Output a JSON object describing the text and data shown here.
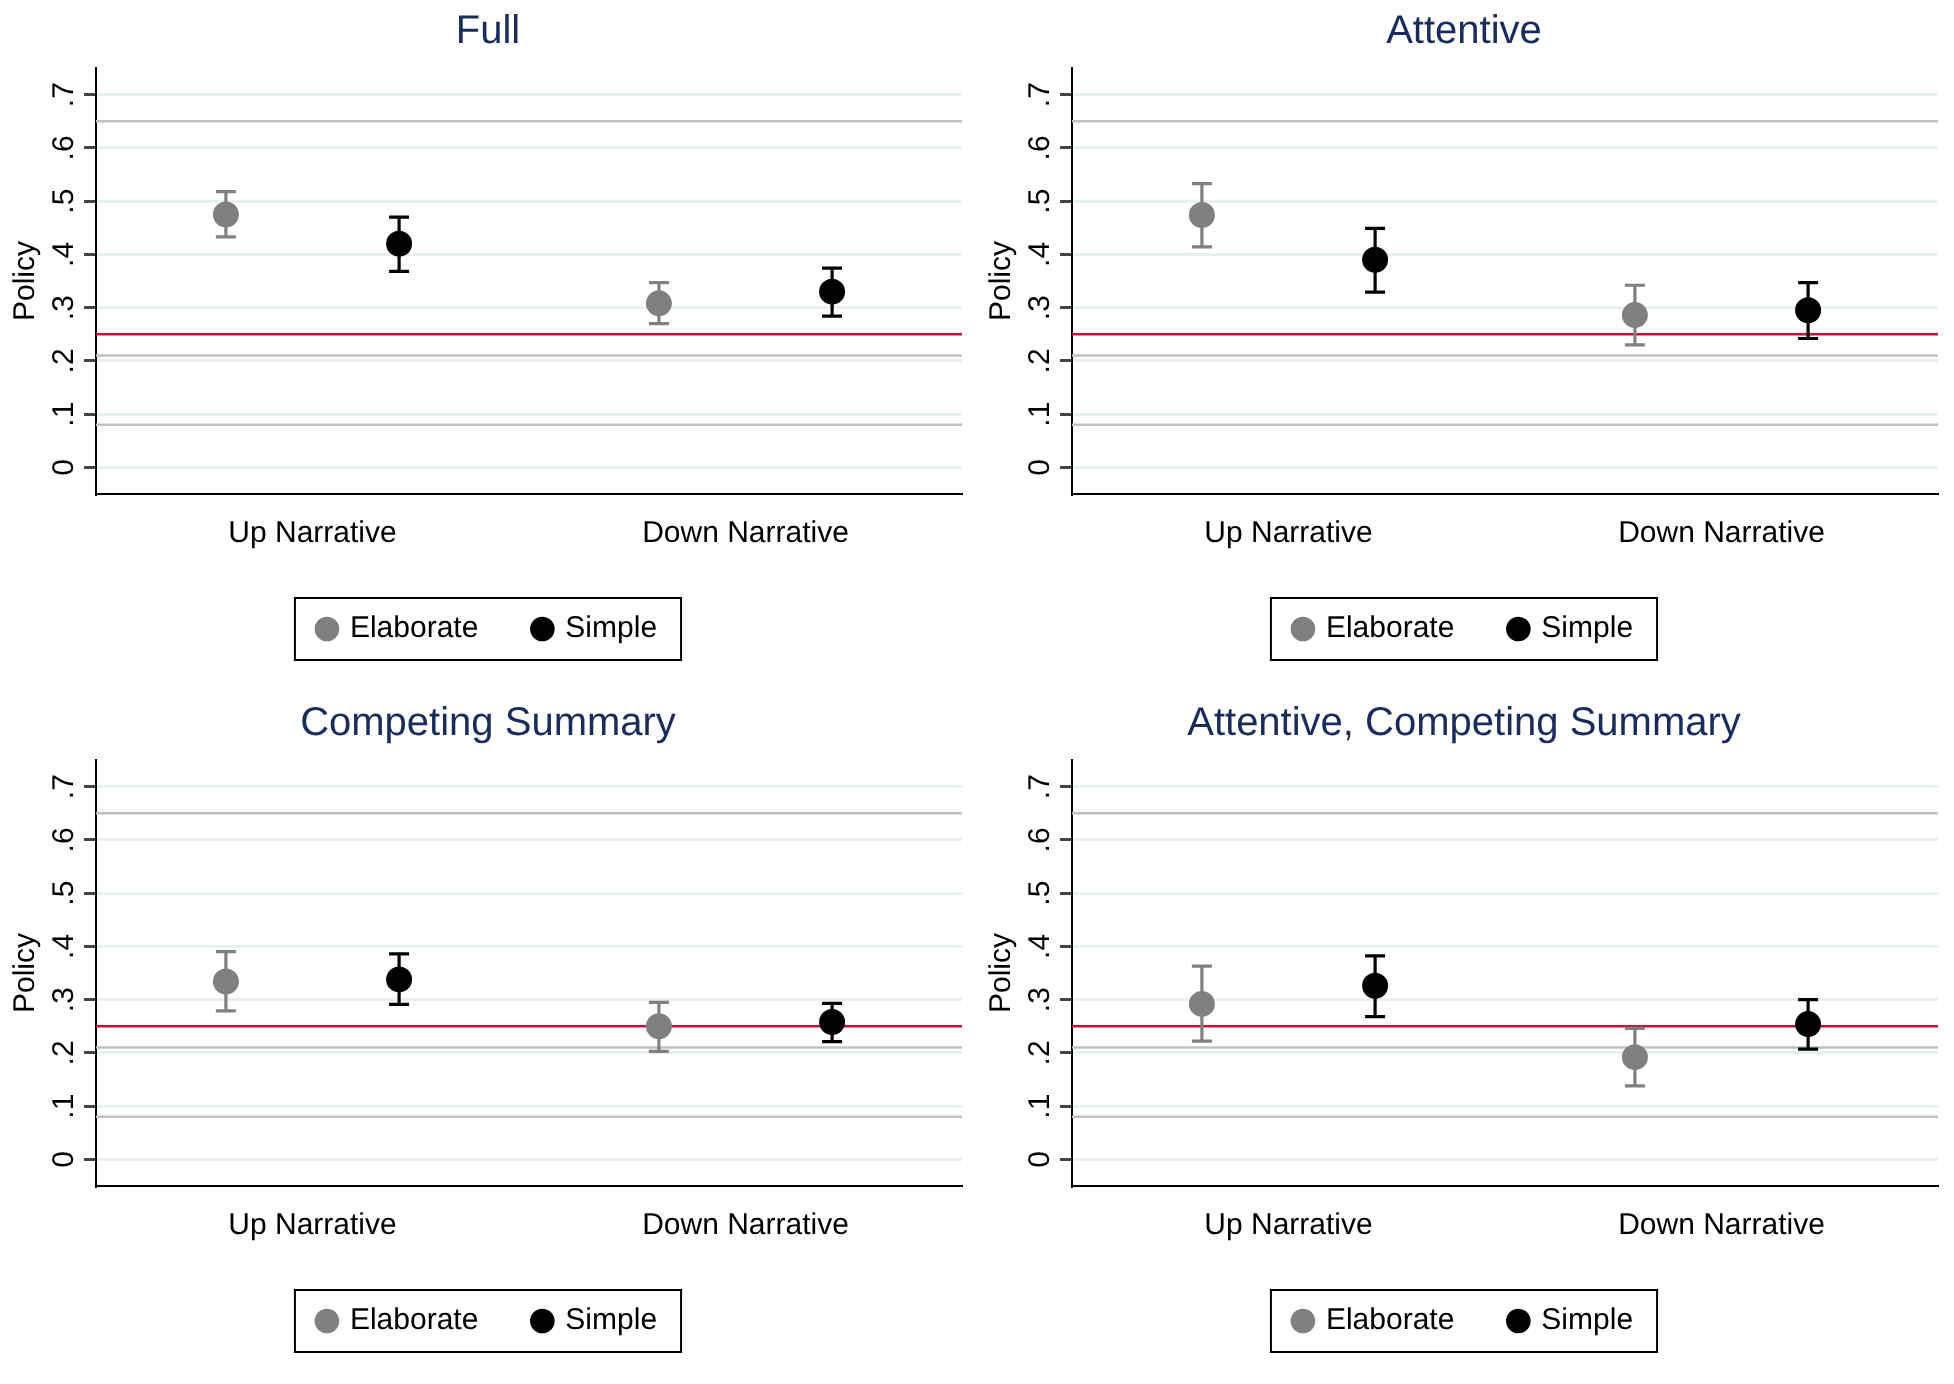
{
  "chart_data": [
    {
      "type": "scatter",
      "title": "Full",
      "ylabel": "Policy",
      "categories": [
        "Up Narrative",
        "Down Narrative"
      ],
      "series": [
        {
          "name": "Elaborate",
          "color": "#808080",
          "values": [
            0.475,
            0.308
          ],
          "errors": [
            [
              0.433,
              0.518
            ],
            [
              0.27,
              0.347
            ]
          ]
        },
        {
          "name": "Simple",
          "color": "#000000",
          "values": [
            0.42,
            0.33
          ],
          "errors": [
            [
              0.368,
              0.47
            ],
            [
              0.284,
              0.374
            ]
          ]
        }
      ],
      "ylim": [
        -0.05,
        0.75
      ],
      "yticks": [
        {
          "value": 0,
          "label": "0"
        },
        {
          "value": 0.1,
          "label": ".1"
        },
        {
          "value": 0.2,
          "label": ".2"
        },
        {
          "value": 0.3,
          "label": ".3"
        },
        {
          "value": 0.4,
          "label": ".4"
        },
        {
          "value": 0.5,
          "label": ".5"
        },
        {
          "value": 0.6,
          "label": ".6"
        },
        {
          "value": 0.7,
          "label": ".7"
        }
      ],
      "ref_lines": [
        {
          "axis": "y",
          "value": 0.65,
          "color": "#c0c0c0"
        },
        {
          "axis": "y",
          "value": 0.21,
          "color": "#c0c0c0"
        },
        {
          "axis": "y",
          "value": 0.08,
          "color": "#c0c0c0"
        },
        {
          "axis": "y",
          "value": 0.25,
          "color": "#c8103c"
        }
      ],
      "grid": "y",
      "legend": "bottom",
      "marker": "circle"
    },
    {
      "type": "scatter",
      "title": "Attentive",
      "ylabel": "Policy",
      "categories": [
        "Up Narrative",
        "Down Narrative"
      ],
      "series": [
        {
          "name": "Elaborate",
          "color": "#808080",
          "values": [
            0.474,
            0.286
          ],
          "errors": [
            [
              0.414,
              0.533
            ],
            [
              0.23,
              0.342
            ]
          ]
        },
        {
          "name": "Simple",
          "color": "#000000",
          "values": [
            0.39,
            0.295
          ],
          "errors": [
            [
              0.329,
              0.449
            ],
            [
              0.242,
              0.347
            ]
          ]
        }
      ],
      "ylim": [
        -0.05,
        0.75
      ],
      "yticks": [
        {
          "value": 0,
          "label": "0"
        },
        {
          "value": 0.1,
          "label": ".1"
        },
        {
          "value": 0.2,
          "label": ".2"
        },
        {
          "value": 0.3,
          "label": ".3"
        },
        {
          "value": 0.4,
          "label": ".4"
        },
        {
          "value": 0.5,
          "label": ".5"
        },
        {
          "value": 0.6,
          "label": ".6"
        },
        {
          "value": 0.7,
          "label": ".7"
        }
      ],
      "ref_lines": [
        {
          "axis": "y",
          "value": 0.65,
          "color": "#c0c0c0"
        },
        {
          "axis": "y",
          "value": 0.21,
          "color": "#c0c0c0"
        },
        {
          "axis": "y",
          "value": 0.08,
          "color": "#c0c0c0"
        },
        {
          "axis": "y",
          "value": 0.25,
          "color": "#c8103c"
        }
      ],
      "grid": "y",
      "legend": "bottom",
      "marker": "circle"
    },
    {
      "type": "scatter",
      "title": "Competing Summary",
      "ylabel": "Policy",
      "categories": [
        "Up Narrative",
        "Down Narrative"
      ],
      "series": [
        {
          "name": "Elaborate",
          "color": "#808080",
          "values": [
            0.334,
            0.25
          ],
          "errors": [
            [
              0.279,
              0.39
            ],
            [
              0.203,
              0.295
            ]
          ]
        },
        {
          "name": "Simple",
          "color": "#000000",
          "values": [
            0.338,
            0.258
          ],
          "errors": [
            [
              0.291,
              0.386
            ],
            [
              0.221,
              0.293
            ]
          ]
        }
      ],
      "ylim": [
        -0.05,
        0.75
      ],
      "yticks": [
        {
          "value": 0,
          "label": "0"
        },
        {
          "value": 0.1,
          "label": ".1"
        },
        {
          "value": 0.2,
          "label": ".2"
        },
        {
          "value": 0.3,
          "label": ".3"
        },
        {
          "value": 0.4,
          "label": ".4"
        },
        {
          "value": 0.5,
          "label": ".5"
        },
        {
          "value": 0.6,
          "label": ".6"
        },
        {
          "value": 0.7,
          "label": ".7"
        }
      ],
      "ref_lines": [
        {
          "axis": "y",
          "value": 0.65,
          "color": "#c0c0c0"
        },
        {
          "axis": "y",
          "value": 0.21,
          "color": "#c0c0c0"
        },
        {
          "axis": "y",
          "value": 0.08,
          "color": "#c0c0c0"
        },
        {
          "axis": "y",
          "value": 0.25,
          "color": "#c8103c"
        }
      ],
      "grid": "y",
      "legend": "bottom",
      "marker": "circle"
    },
    {
      "type": "scatter",
      "title": "Attentive, Competing Summary",
      "ylabel": "Policy",
      "categories": [
        "Up Narrative",
        "Down Narrative"
      ],
      "series": [
        {
          "name": "Elaborate",
          "color": "#808080",
          "values": [
            0.292,
            0.192
          ],
          "errors": [
            [
              0.222,
              0.363
            ],
            [
              0.138,
              0.246
            ]
          ]
        },
        {
          "name": "Simple",
          "color": "#000000",
          "values": [
            0.326,
            0.254
          ],
          "errors": [
            [
              0.268,
              0.382
            ],
            [
              0.207,
              0.3
            ]
          ]
        }
      ],
      "ylim": [
        -0.05,
        0.75
      ],
      "yticks": [
        {
          "value": 0,
          "label": "0"
        },
        {
          "value": 0.1,
          "label": ".1"
        },
        {
          "value": 0.2,
          "label": ".2"
        },
        {
          "value": 0.3,
          "label": ".3"
        },
        {
          "value": 0.4,
          "label": ".4"
        },
        {
          "value": 0.5,
          "label": ".5"
        },
        {
          "value": 0.6,
          "label": ".6"
        },
        {
          "value": 0.7,
          "label": ".7"
        }
      ],
      "ref_lines": [
        {
          "axis": "y",
          "value": 0.65,
          "color": "#c0c0c0"
        },
        {
          "axis": "y",
          "value": 0.21,
          "color": "#c0c0c0"
        },
        {
          "axis": "y",
          "value": 0.08,
          "color": "#c0c0c0"
        },
        {
          "axis": "y",
          "value": 0.25,
          "color": "#c8103c"
        }
      ],
      "grid": "y",
      "legend": "bottom",
      "marker": "circle"
    }
  ]
}
